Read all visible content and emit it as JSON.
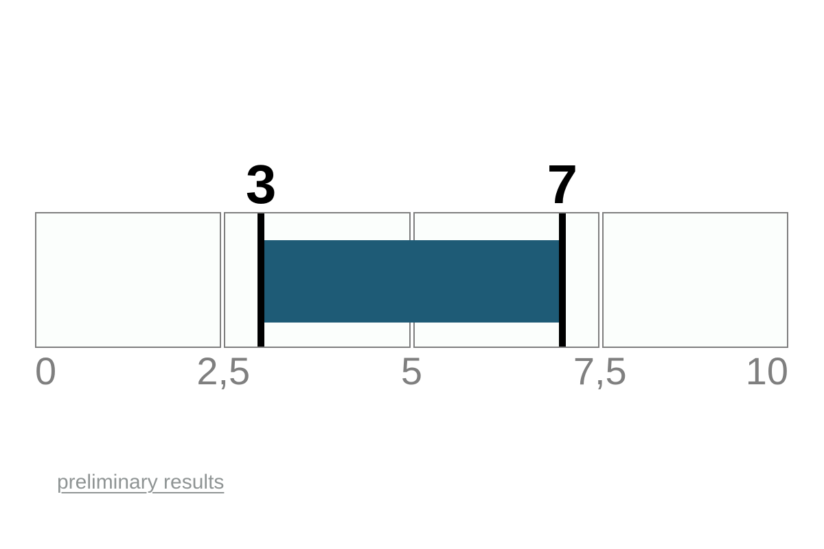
{
  "chart_data": {
    "type": "bar",
    "subtype": "range-bar-on-linear-scale",
    "title": "",
    "axis": {
      "min": 0,
      "max": 10,
      "ticks": [
        {
          "value": 0,
          "label": "0"
        },
        {
          "value": 2.5,
          "label": "2,5"
        },
        {
          "value": 5,
          "label": "5"
        },
        {
          "value": 7.5,
          "label": "7,5"
        },
        {
          "value": 10,
          "label": "10"
        }
      ]
    },
    "segments": {
      "count": 4,
      "bounds": [
        0,
        2.5,
        5,
        7.5,
        10
      ]
    },
    "range": {
      "start": 3,
      "end": 7,
      "start_label": "3",
      "end_label": "7"
    },
    "grid": "segmented-boxes",
    "legend": "none",
    "colors": {
      "bar": "#1e5b76",
      "marker": "#000000",
      "segment_fill": "#fbfefc",
      "segment_border": "#7e7e7e",
      "tick_label": "#7f7f7f",
      "number_label": "#000000"
    }
  },
  "footer": {
    "link_label": "preliminary results",
    "link_color": "#8f9494"
  }
}
